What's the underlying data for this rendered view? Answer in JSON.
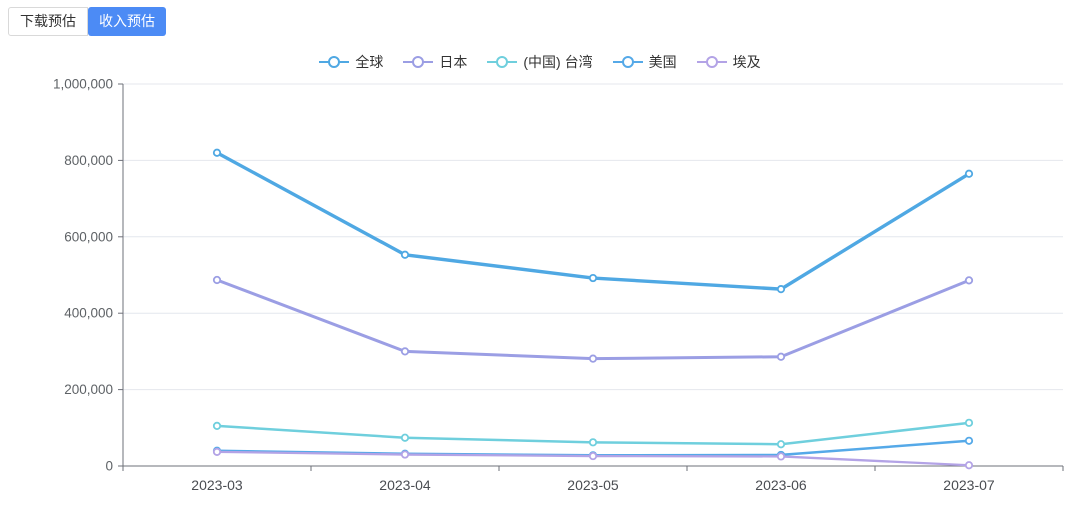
{
  "tabs": [
    {
      "label": "下载预估",
      "active": false
    },
    {
      "label": "收入预估",
      "active": true
    }
  ],
  "colors": {
    "tab_active_bg": "#4c8bf5",
    "grid_line": "#e4e7ed",
    "axis_line": "#6e7079"
  },
  "chart_data": {
    "type": "line",
    "title": "",
    "xlabel": "",
    "ylabel": "",
    "categories": [
      "2023-03",
      "2023-04",
      "2023-05",
      "2023-06",
      "2023-07"
    ],
    "series": [
      {
        "name": "全球",
        "color": "#4fa8e3",
        "values": [
          820000,
          553000,
          492000,
          463000,
          765000
        ]
      },
      {
        "name": "日本",
        "color": "#9b9ee4",
        "values": [
          487000,
          300000,
          281000,
          286000,
          486000
        ]
      },
      {
        "name": "(中国) 台湾",
        "color": "#6fcfdd",
        "values": [
          105000,
          74000,
          62000,
          57000,
          113000
        ]
      },
      {
        "name": "美国",
        "color": "#55a9e8",
        "values": [
          40000,
          32000,
          28000,
          29000,
          66000
        ]
      },
      {
        "name": "埃及",
        "color": "#b3a3e6",
        "values": [
          37000,
          30000,
          26000,
          25000,
          2000
        ]
      }
    ],
    "ylim": [
      0,
      1000000
    ],
    "y_tick_interval": 200000,
    "y_ticks": [
      "0",
      "200,000",
      "400,000",
      "600,000",
      "800,000",
      "1,000,000"
    ],
    "grid": true,
    "legend_position": "top-center",
    "marker": "hollow-circle"
  }
}
